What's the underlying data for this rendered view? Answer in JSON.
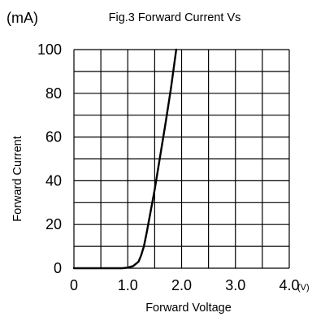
{
  "chart_data": {
    "type": "line",
    "title": "Fig.3 Forward Current Vs",
    "xlabel": "Forward  Voltage",
    "ylabel": "Forward Current",
    "x_unit": "(V)",
    "y_unit": "(mA)",
    "xlim": [
      0,
      4.0
    ],
    "ylim": [
      0,
      100
    ],
    "x_ticks": [
      "0",
      "1.0",
      "2.0",
      "3.0",
      "4.0"
    ],
    "x_tick_values": [
      0,
      1.0,
      2.0,
      3.0,
      4.0
    ],
    "y_ticks": [
      "0",
      "20",
      "40",
      "60",
      "80",
      "100"
    ],
    "y_tick_values": [
      0,
      20,
      40,
      60,
      80,
      100
    ],
    "grid": true,
    "grid_x_step": 0.5,
    "grid_y_step": 10,
    "series": [
      {
        "x": [
          0.0,
          0.5,
          0.9,
          1.0,
          1.1,
          1.2,
          1.25,
          1.3,
          1.35,
          1.5,
          1.6,
          1.7,
          1.8,
          1.9
        ],
        "y": [
          0,
          0,
          0,
          0.3,
          1,
          3,
          6,
          10,
          16,
          36,
          51,
          66,
          82,
          100
        ]
      }
    ]
  }
}
